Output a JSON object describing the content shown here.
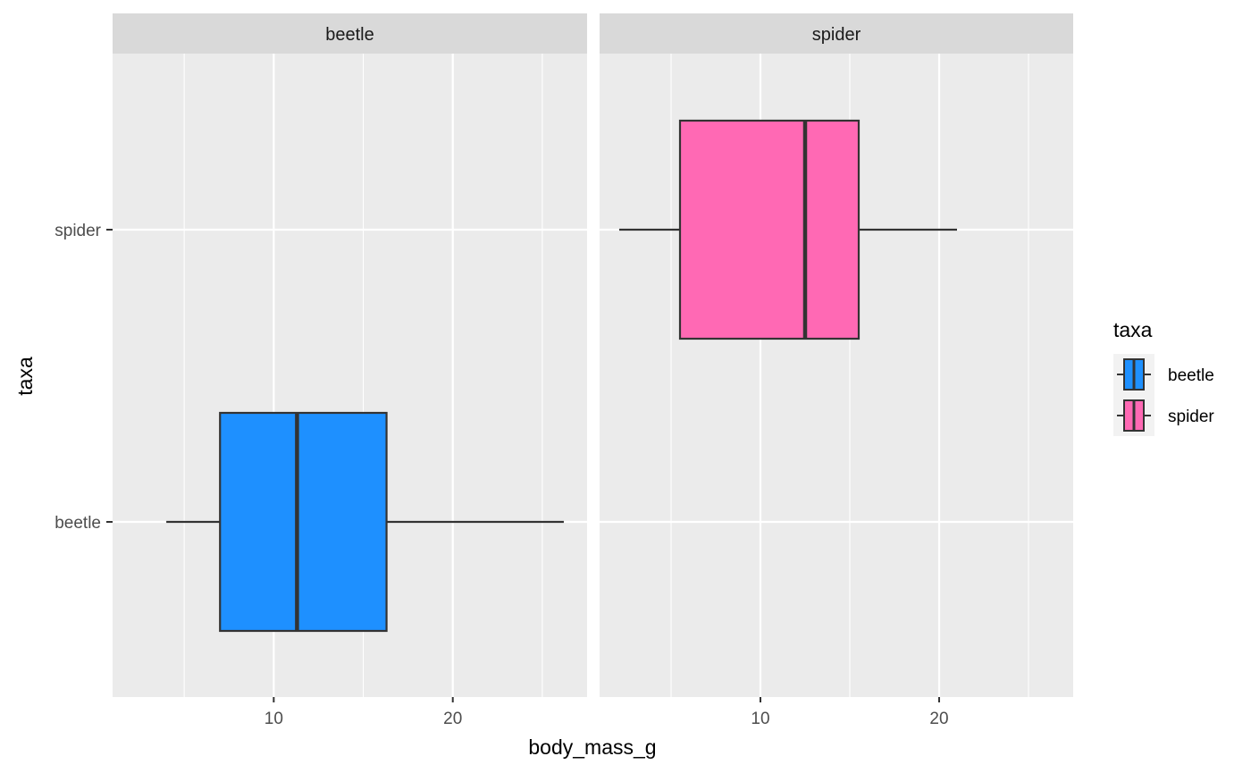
{
  "chart_data": {
    "type": "boxplot",
    "orientation": "horizontal",
    "xlabel": "body_mass_g",
    "ylabel": "taxa",
    "xlim": [
      1,
      27.5
    ],
    "x_ticks": [
      10,
      20
    ],
    "x_minor_ticks": [
      5,
      15,
      25
    ],
    "y_categories": [
      "beetle",
      "spider"
    ],
    "facets": [
      {
        "label": "beetle",
        "boxes": [
          {
            "category": "beetle",
            "min": 4.0,
            "q1": 7.0,
            "median": 11.3,
            "q3": 16.3,
            "max": 26.2
          }
        ]
      },
      {
        "label": "spider",
        "boxes": [
          {
            "category": "spider",
            "min": 2.1,
            "q1": 5.5,
            "median": 12.5,
            "q3": 15.5,
            "max": 21.0
          }
        ]
      }
    ],
    "legend": {
      "title": "taxa",
      "position": "right",
      "entries": [
        {
          "label": "beetle",
          "color": "#1E90FF"
        },
        {
          "label": "spider",
          "color": "#FF69B4"
        }
      ]
    },
    "grid": true,
    "colors": {
      "panel_bg": "#EBEBEB",
      "strip_bg": "#D9D9D9",
      "grid": "#FFFFFF",
      "box_outline": "#333333",
      "beetle": "#1E90FF",
      "spider": "#FF69B4"
    }
  }
}
